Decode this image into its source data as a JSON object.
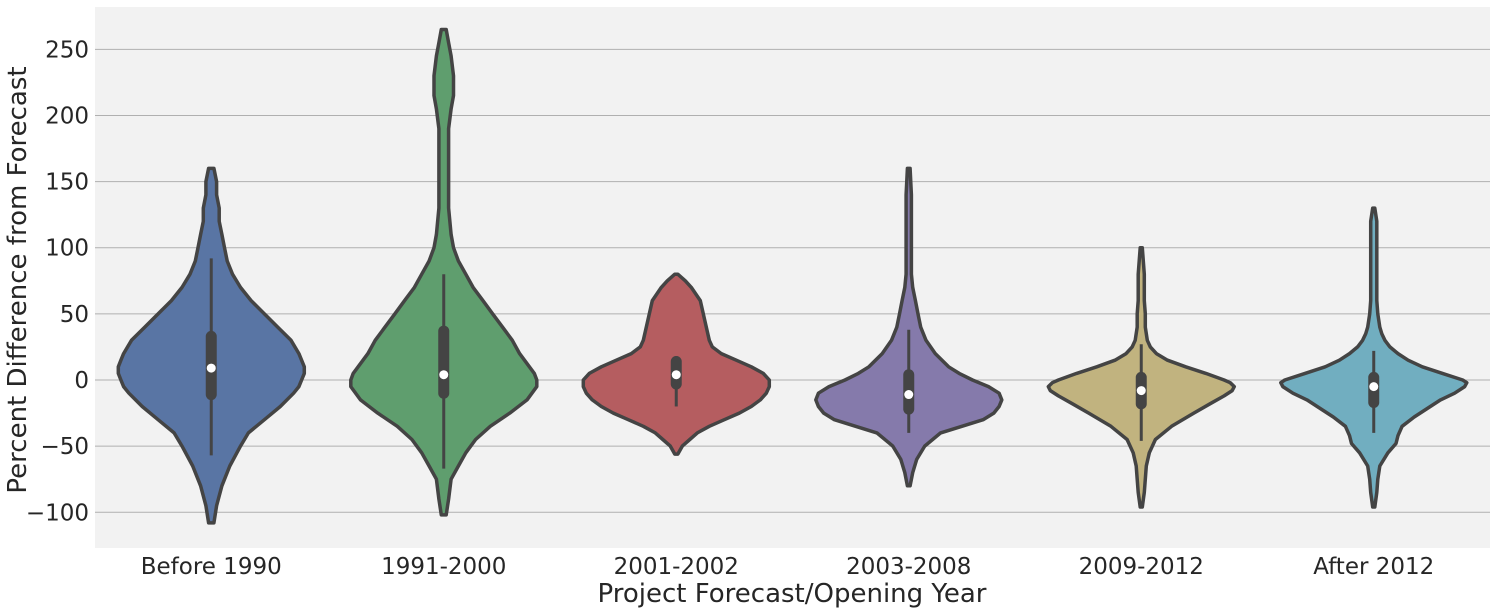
{
  "chart_data": {
    "type": "violin",
    "xlabel": "Project Forecast/Opening Year",
    "ylabel": "Percent Difference from Forecast",
    "ylim": [
      -127,
      282
    ],
    "yticks": [
      -100,
      -50,
      0,
      50,
      100,
      150,
      200,
      250
    ],
    "grid": "horizontal",
    "background": "#f2f2f2",
    "edge_color": "#444444",
    "categories": [
      {
        "label": "Before 1990",
        "color": "#5975a4",
        "median": 9,
        "q1": -11,
        "q3": 33,
        "whisker_low": -57,
        "whisker_high": 92,
        "min": -108,
        "max": 160,
        "profile": [
          [
            -108,
            1
          ],
          [
            -95,
            2
          ],
          [
            -80,
            4
          ],
          [
            -65,
            7
          ],
          [
            -50,
            11
          ],
          [
            -40,
            14
          ],
          [
            -30,
            20
          ],
          [
            -20,
            26
          ],
          [
            -10,
            31
          ],
          [
            -5,
            33
          ],
          [
            0,
            34
          ],
          [
            5,
            35
          ],
          [
            10,
            35
          ],
          [
            15,
            34
          ],
          [
            20,
            33
          ],
          [
            30,
            30
          ],
          [
            40,
            25
          ],
          [
            50,
            20
          ],
          [
            60,
            15
          ],
          [
            70,
            11
          ],
          [
            80,
            8
          ],
          [
            90,
            6
          ],
          [
            100,
            5
          ],
          [
            110,
            4
          ],
          [
            120,
            3
          ],
          [
            130,
            3
          ],
          [
            140,
            2
          ],
          [
            150,
            2
          ],
          [
            160,
            1
          ]
        ]
      },
      {
        "label": "1991-2000",
        "color": "#5f9e6e",
        "median": 4,
        "q1": -10,
        "q3": 37,
        "whisker_low": -67,
        "whisker_high": 80,
        "min": -102,
        "max": 265,
        "profile": [
          [
            -102,
            1
          ],
          [
            -90,
            2
          ],
          [
            -75,
            3
          ],
          [
            -65,
            6
          ],
          [
            -55,
            9
          ],
          [
            -45,
            13
          ],
          [
            -35,
            19
          ],
          [
            -25,
            27
          ],
          [
            -15,
            34
          ],
          [
            -5,
            38
          ],
          [
            0,
            38
          ],
          [
            5,
            37
          ],
          [
            10,
            35
          ],
          [
            15,
            33
          ],
          [
            20,
            31
          ],
          [
            30,
            28
          ],
          [
            40,
            24
          ],
          [
            50,
            20
          ],
          [
            60,
            16
          ],
          [
            70,
            12
          ],
          [
            80,
            9
          ],
          [
            90,
            6
          ],
          [
            100,
            4
          ],
          [
            110,
            3
          ],
          [
            130,
            2
          ],
          [
            160,
            2
          ],
          [
            190,
            2
          ],
          [
            205,
            3
          ],
          [
            215,
            4
          ],
          [
            230,
            4
          ],
          [
            245,
            3
          ],
          [
            255,
            2
          ],
          [
            265,
            1
          ]
        ]
      },
      {
        "label": "2001-2002",
        "color": "#b55d60",
        "median": 4,
        "q1": -3,
        "q3": 14,
        "whisker_low": -20,
        "whisker_high": 18,
        "min": -56,
        "max": 80,
        "profile": [
          [
            -56,
            1
          ],
          [
            -50,
            4
          ],
          [
            -45,
            9
          ],
          [
            -40,
            14
          ],
          [
            -35,
            22
          ],
          [
            -30,
            32
          ],
          [
            -25,
            42
          ],
          [
            -20,
            50
          ],
          [
            -15,
            56
          ],
          [
            -10,
            60
          ],
          [
            -5,
            62
          ],
          [
            0,
            62
          ],
          [
            5,
            58
          ],
          [
            10,
            50
          ],
          [
            15,
            40
          ],
          [
            20,
            30
          ],
          [
            25,
            24
          ],
          [
            30,
            22
          ],
          [
            40,
            20
          ],
          [
            50,
            18
          ],
          [
            60,
            16
          ],
          [
            70,
            10
          ],
          [
            75,
            6
          ],
          [
            80,
            1
          ]
        ]
      },
      {
        "label": "2003-2008",
        "color": "#857aab",
        "median": -11,
        "q1": -22,
        "q3": 4,
        "whisker_low": -40,
        "whisker_high": 38,
        "min": -80,
        "max": 160,
        "profile": [
          [
            -80,
            1
          ],
          [
            -70,
            3
          ],
          [
            -60,
            6
          ],
          [
            -50,
            12
          ],
          [
            -40,
            24
          ],
          [
            -35,
            40
          ],
          [
            -30,
            56
          ],
          [
            -25,
            64
          ],
          [
            -20,
            68
          ],
          [
            -15,
            70
          ],
          [
            -10,
            68
          ],
          [
            -5,
            60
          ],
          [
            0,
            48
          ],
          [
            5,
            38
          ],
          [
            10,
            30
          ],
          [
            20,
            20
          ],
          [
            30,
            13
          ],
          [
            40,
            9
          ],
          [
            50,
            7
          ],
          [
            60,
            5
          ],
          [
            70,
            3
          ],
          [
            80,
            2
          ],
          [
            100,
            2
          ],
          [
            120,
            2
          ],
          [
            140,
            2
          ],
          [
            160,
            1
          ]
        ]
      },
      {
        "label": "2009-2012",
        "color": "#c1b37f",
        "median": -8,
        "q1": -18,
        "q3": 2,
        "whisker_low": -46,
        "whisker_high": 27,
        "min": -96,
        "max": 100,
        "profile": [
          [
            -96,
            1
          ],
          [
            -85,
            3
          ],
          [
            -75,
            4
          ],
          [
            -65,
            5
          ],
          [
            -55,
            8
          ],
          [
            -45,
            14
          ],
          [
            -35,
            30
          ],
          [
            -25,
            52
          ],
          [
            -18,
            68
          ],
          [
            -12,
            82
          ],
          [
            -8,
            90
          ],
          [
            -5,
            92
          ],
          [
            -2,
            88
          ],
          [
            0,
            82
          ],
          [
            5,
            64
          ],
          [
            10,
            44
          ],
          [
            15,
            26
          ],
          [
            20,
            15
          ],
          [
            25,
            9
          ],
          [
            30,
            6
          ],
          [
            40,
            4
          ],
          [
            50,
            4
          ],
          [
            60,
            3
          ],
          [
            70,
            3
          ],
          [
            80,
            3
          ],
          [
            90,
            2
          ],
          [
            100,
            1
          ]
        ]
      },
      {
        "label": "After 2012",
        "color": "#71aec0",
        "median": -5,
        "q1": -17,
        "q3": 2,
        "whisker_low": -40,
        "whisker_high": 22,
        "min": -96,
        "max": 130,
        "profile": [
          [
            -96,
            1
          ],
          [
            -85,
            3
          ],
          [
            -75,
            4
          ],
          [
            -65,
            6
          ],
          [
            -55,
            14
          ],
          [
            -48,
            22
          ],
          [
            -42,
            24
          ],
          [
            -35,
            28
          ],
          [
            -28,
            40
          ],
          [
            -22,
            52
          ],
          [
            -15,
            66
          ],
          [
            -10,
            80
          ],
          [
            -5,
            90
          ],
          [
            -2,
            92
          ],
          [
            0,
            88
          ],
          [
            5,
            68
          ],
          [
            10,
            48
          ],
          [
            15,
            34
          ],
          [
            20,
            24
          ],
          [
            25,
            16
          ],
          [
            30,
            11
          ],
          [
            35,
            8
          ],
          [
            40,
            6
          ],
          [
            50,
            4
          ],
          [
            60,
            3
          ],
          [
            80,
            3
          ],
          [
            100,
            3
          ],
          [
            110,
            3
          ],
          [
            120,
            3
          ],
          [
            130,
            1
          ]
        ]
      }
    ]
  }
}
